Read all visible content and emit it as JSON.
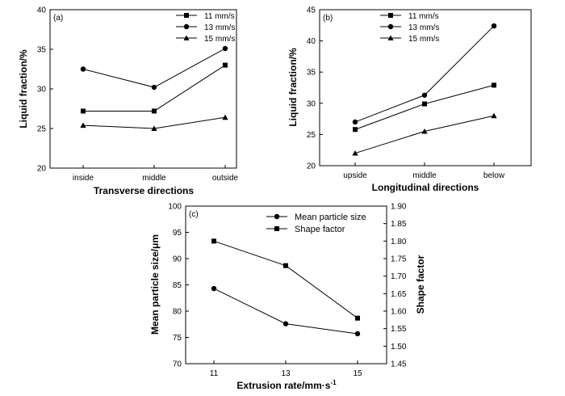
{
  "chart_data": [
    {
      "type": "line",
      "panel_label": "(a)",
      "categories": [
        "inside",
        "middle",
        "outside"
      ],
      "xlabel": "Transverse directions",
      "ylabel": "Liquid fraction/%",
      "ylim": [
        20,
        40
      ],
      "yticks": [
        "20",
        "25",
        "30",
        "35",
        "40"
      ],
      "legend_position": "top-right",
      "series": [
        {
          "name": "11 mm/s",
          "marker": "square",
          "values": [
            27.2,
            27.2,
            33.0
          ]
        },
        {
          "name": "13 mm/s",
          "marker": "circle",
          "values": [
            32.5,
            30.2,
            35.1
          ]
        },
        {
          "name": "15 mm/s",
          "marker": "triangle",
          "values": [
            25.4,
            25.0,
            26.4
          ]
        }
      ]
    },
    {
      "type": "line",
      "panel_label": "(b)",
      "categories": [
        "upside",
        "middle",
        "below"
      ],
      "xlabel": "Longitudinal directions",
      "ylabel": "Liquid fraction/%",
      "ylim": [
        20,
        45
      ],
      "yticks": [
        "20",
        "25",
        "30",
        "35",
        "40",
        "45"
      ],
      "legend_position": "top-left",
      "series": [
        {
          "name": "11 mm/s",
          "marker": "square",
          "values": [
            25.8,
            29.9,
            32.9
          ]
        },
        {
          "name": "13 mm/s",
          "marker": "circle",
          "values": [
            27.0,
            31.3,
            42.4
          ]
        },
        {
          "name": "15 mm/s",
          "marker": "triangle",
          "values": [
            22.0,
            25.5,
            28.0
          ]
        }
      ]
    },
    {
      "type": "line",
      "panel_label": "(c)",
      "categories": [
        "11",
        "13",
        "15"
      ],
      "xlabel": "Extrusion rate/mm·s",
      "xlabel_sup": "-1",
      "ylabel": "Mean particle size/μm",
      "ylabel_right": "Shape factor",
      "ylim": [
        70,
        100
      ],
      "yticks": [
        "70",
        "75",
        "80",
        "85",
        "90",
        "95",
        "100"
      ],
      "ylim_right": [
        1.45,
        1.9
      ],
      "yticks_right": [
        "1.45",
        "1.50",
        "1.55",
        "1.60",
        "1.65",
        "1.70",
        "1.75",
        "1.80",
        "1.85",
        "1.90"
      ],
      "legend_position": "top-right",
      "series": [
        {
          "name": "Mean particle size",
          "marker": "circle",
          "axis": "left",
          "values": [
            84.3,
            77.6,
            75.7
          ]
        },
        {
          "name": "Shape factor",
          "marker": "square",
          "axis": "right",
          "values": [
            1.8,
            1.73,
            1.58
          ]
        }
      ]
    }
  ]
}
